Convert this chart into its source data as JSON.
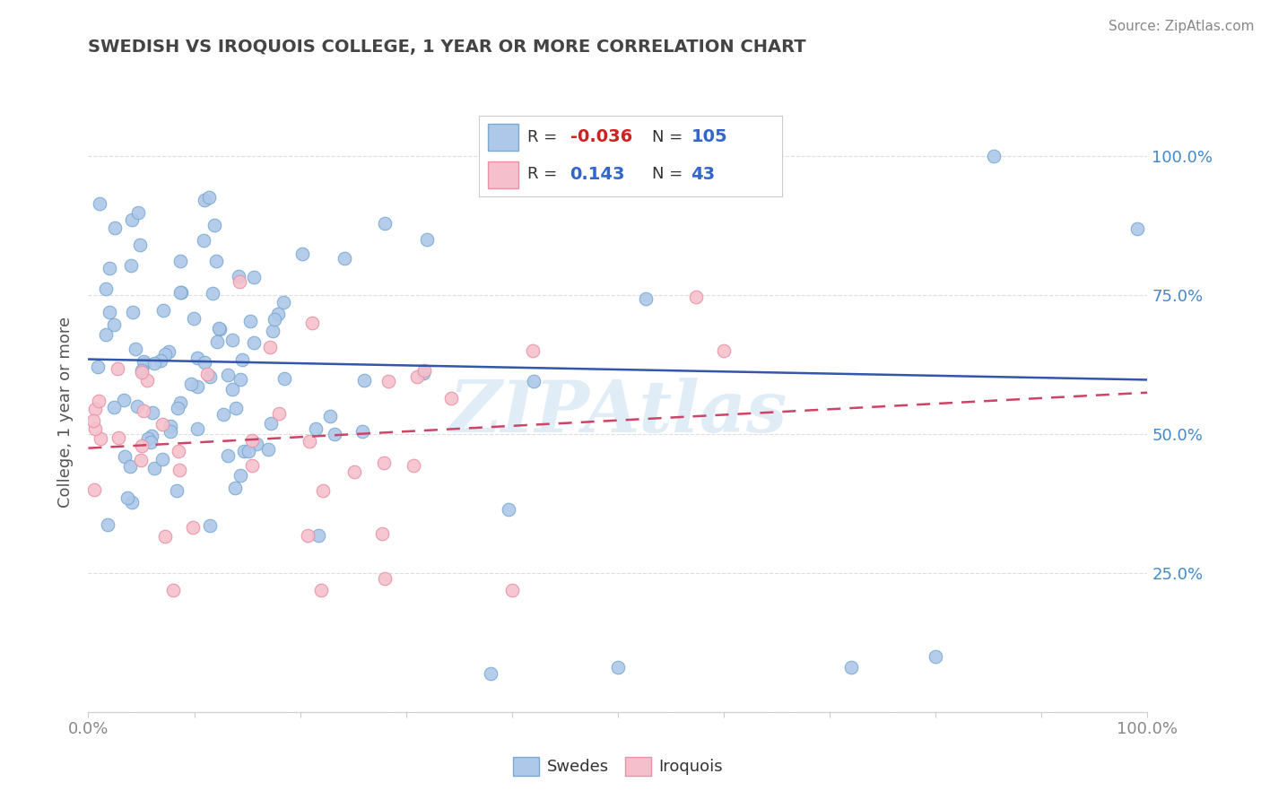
{
  "title": "SWEDISH VS IROQUOIS COLLEGE, 1 YEAR OR MORE CORRELATION CHART",
  "source_text": "Source: ZipAtlas.com",
  "ylabel": "College, 1 year or more",
  "xlim": [
    0.0,
    1.0
  ],
  "ylim": [
    0.0,
    1.08
  ],
  "ytick_values": [
    0.0,
    0.25,
    0.5,
    0.75,
    1.0
  ],
  "ytick_labels_right": [
    "",
    "25.0%",
    "50.0%",
    "75.0%",
    "100.0%"
  ],
  "xtick_values": [
    0.0,
    0.1,
    0.2,
    0.3,
    0.4,
    0.5,
    0.6,
    0.7,
    0.8,
    0.9,
    1.0
  ],
  "blue_fill": "#adc8e8",
  "blue_edge": "#7aaad0",
  "pink_fill": "#f5c0cc",
  "pink_edge": "#e890a8",
  "blue_line": "#3355aa",
  "pink_line": "#cc4466",
  "legend_R_blue": "-0.036",
  "legend_N_blue": "105",
  "legend_R_pink": "0.143",
  "legend_N_pink": "43",
  "legend_R_blue_color": "#cc2222",
  "legend_R_pink_color": "#3366cc",
  "legend_N_color": "#3366cc",
  "watermark": "ZIPAtlas",
  "watermark_color": "#c8ddf0",
  "background_color": "#ffffff",
  "grid_color": "#dddddd",
  "title_color": "#444444",
  "ylabel_color": "#555555",
  "right_tick_color": "#4488cc",
  "bottom_tick_color": "#888888",
  "source_color": "#888888"
}
